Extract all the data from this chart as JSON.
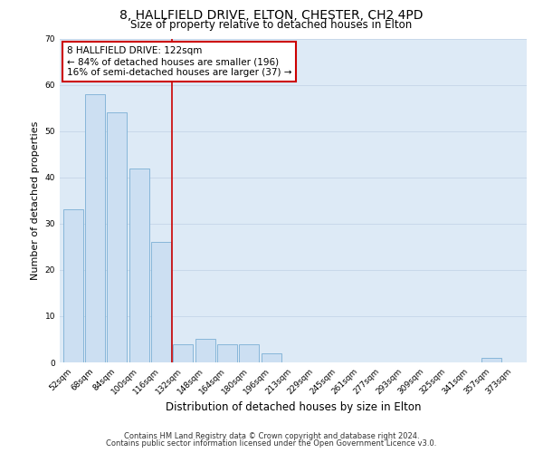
{
  "title": "8, HALLFIELD DRIVE, ELTON, CHESTER, CH2 4PD",
  "subtitle": "Size of property relative to detached houses in Elton",
  "xlabel": "Distribution of detached houses by size in Elton",
  "ylabel": "Number of detached properties",
  "bar_labels": [
    "52sqm",
    "68sqm",
    "84sqm",
    "100sqm",
    "116sqm",
    "132sqm",
    "148sqm",
    "164sqm",
    "180sqm",
    "196sqm",
    "213sqm",
    "229sqm",
    "245sqm",
    "261sqm",
    "277sqm",
    "293sqm",
    "309sqm",
    "325sqm",
    "341sqm",
    "357sqm",
    "373sqm"
  ],
  "bar_values": [
    33,
    58,
    54,
    42,
    26,
    4,
    5,
    4,
    4,
    2,
    0,
    0,
    0,
    0,
    0,
    0,
    0,
    0,
    0,
    1,
    0
  ],
  "bar_color": "#ccdff2",
  "bar_edge_color": "#7bafd4",
  "annotation_line1": "8 HALLFIELD DRIVE: 122sqm",
  "annotation_line2": "← 84% of detached houses are smaller (196)",
  "annotation_line3": "16% of semi-detached houses are larger (37) →",
  "annotation_box_color": "#ffffff",
  "annotation_box_edge": "#cc0000",
  "vline_color": "#cc0000",
  "ylim": [
    0,
    70
  ],
  "yticks": [
    0,
    10,
    20,
    30,
    40,
    50,
    60,
    70
  ],
  "grid_color": "#c8d8ea",
  "background_color": "#ddeaf6",
  "footer_line1": "Contains HM Land Registry data © Crown copyright and database right 2024.",
  "footer_line2": "Contains public sector information licensed under the Open Government Licence v3.0.",
  "title_fontsize": 10,
  "subtitle_fontsize": 8.5,
  "xlabel_fontsize": 8.5,
  "ylabel_fontsize": 8,
  "tick_fontsize": 6.5,
  "footer_fontsize": 6,
  "ann_fontsize": 7.5
}
